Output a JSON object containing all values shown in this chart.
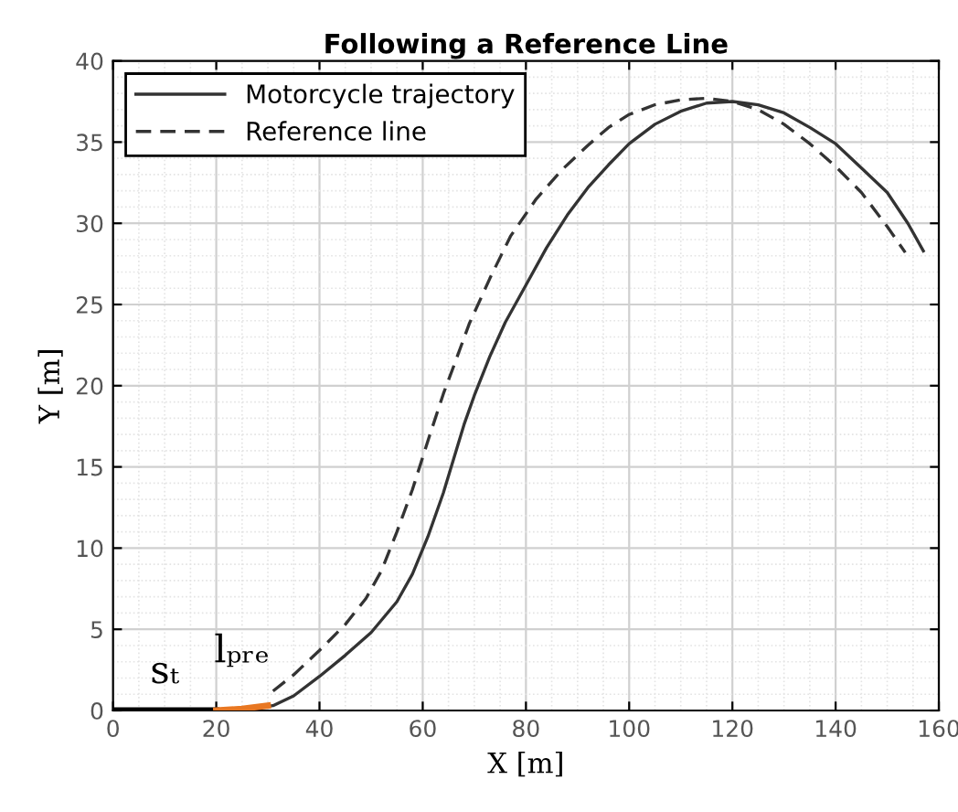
{
  "chart_data": {
    "type": "line",
    "title": "Following a Reference Line",
    "xlabel": "X [m]",
    "ylabel": "Y [m]",
    "xlim": [
      0,
      160
    ],
    "ylim": [
      0,
      40
    ],
    "xticks": [
      0,
      20,
      40,
      60,
      80,
      100,
      120,
      140,
      160
    ],
    "yticks": [
      0,
      5,
      10,
      15,
      20,
      25,
      30,
      35,
      40
    ],
    "grid": true,
    "legend": "top left",
    "series": [
      {
        "name": "Motorcycle trajectory",
        "color": "#333333",
        "line_style": "solid",
        "x": [
          0,
          20,
          26,
          31,
          35,
          40,
          45,
          50,
          55,
          58,
          61,
          64,
          66,
          68,
          70,
          73,
          76,
          80,
          84,
          88,
          92,
          96,
          100,
          105,
          110,
          115,
          120,
          125,
          130,
          135,
          140,
          145,
          150,
          154,
          157
        ],
        "values": [
          0,
          0,
          0.1,
          0.3,
          0.9,
          2.1,
          3.4,
          4.8,
          6.7,
          8.4,
          10.7,
          13.4,
          15.5,
          17.6,
          19.4,
          21.8,
          23.9,
          26.2,
          28.5,
          30.5,
          32.2,
          33.6,
          34.9,
          36.1,
          36.9,
          37.4,
          37.5,
          37.3,
          36.8,
          35.9,
          34.9,
          33.4,
          31.9,
          30,
          28.3
        ]
      },
      {
        "name": "Reference line",
        "color": "#333333",
        "line_style": "dashed",
        "x": [
          31,
          35,
          40,
          45,
          49,
          52,
          55,
          58,
          61,
          64,
          66,
          69,
          73,
          77,
          82,
          87,
          92,
          96,
          100,
          105,
          110,
          115,
          120,
          125,
          130,
          135,
          140,
          145,
          150,
          153.5
        ],
        "values": [
          1.2,
          2.2,
          3.7,
          5.3,
          6.9,
          8.6,
          11,
          13.6,
          16.6,
          19.5,
          21.2,
          23.8,
          26.6,
          29.2,
          31.5,
          33.3,
          34.8,
          35.9,
          36.7,
          37.3,
          37.6,
          37.7,
          37.5,
          37,
          36.1,
          34.9,
          33.5,
          31.9,
          29.8,
          28.2
        ]
      },
      {
        "color": "#000000",
        "line_style": "solid",
        "x": [
          0,
          20
        ],
        "values": [
          0,
          0
        ]
      },
      {
        "color": "#e87722",
        "line_style": "solid",
        "x": [
          20,
          25,
          30
        ],
        "values": [
          0,
          0.1,
          0.3
        ]
      }
    ],
    "annotations": [
      "sₜ",
      "lₚᵣₑ"
    ]
  }
}
